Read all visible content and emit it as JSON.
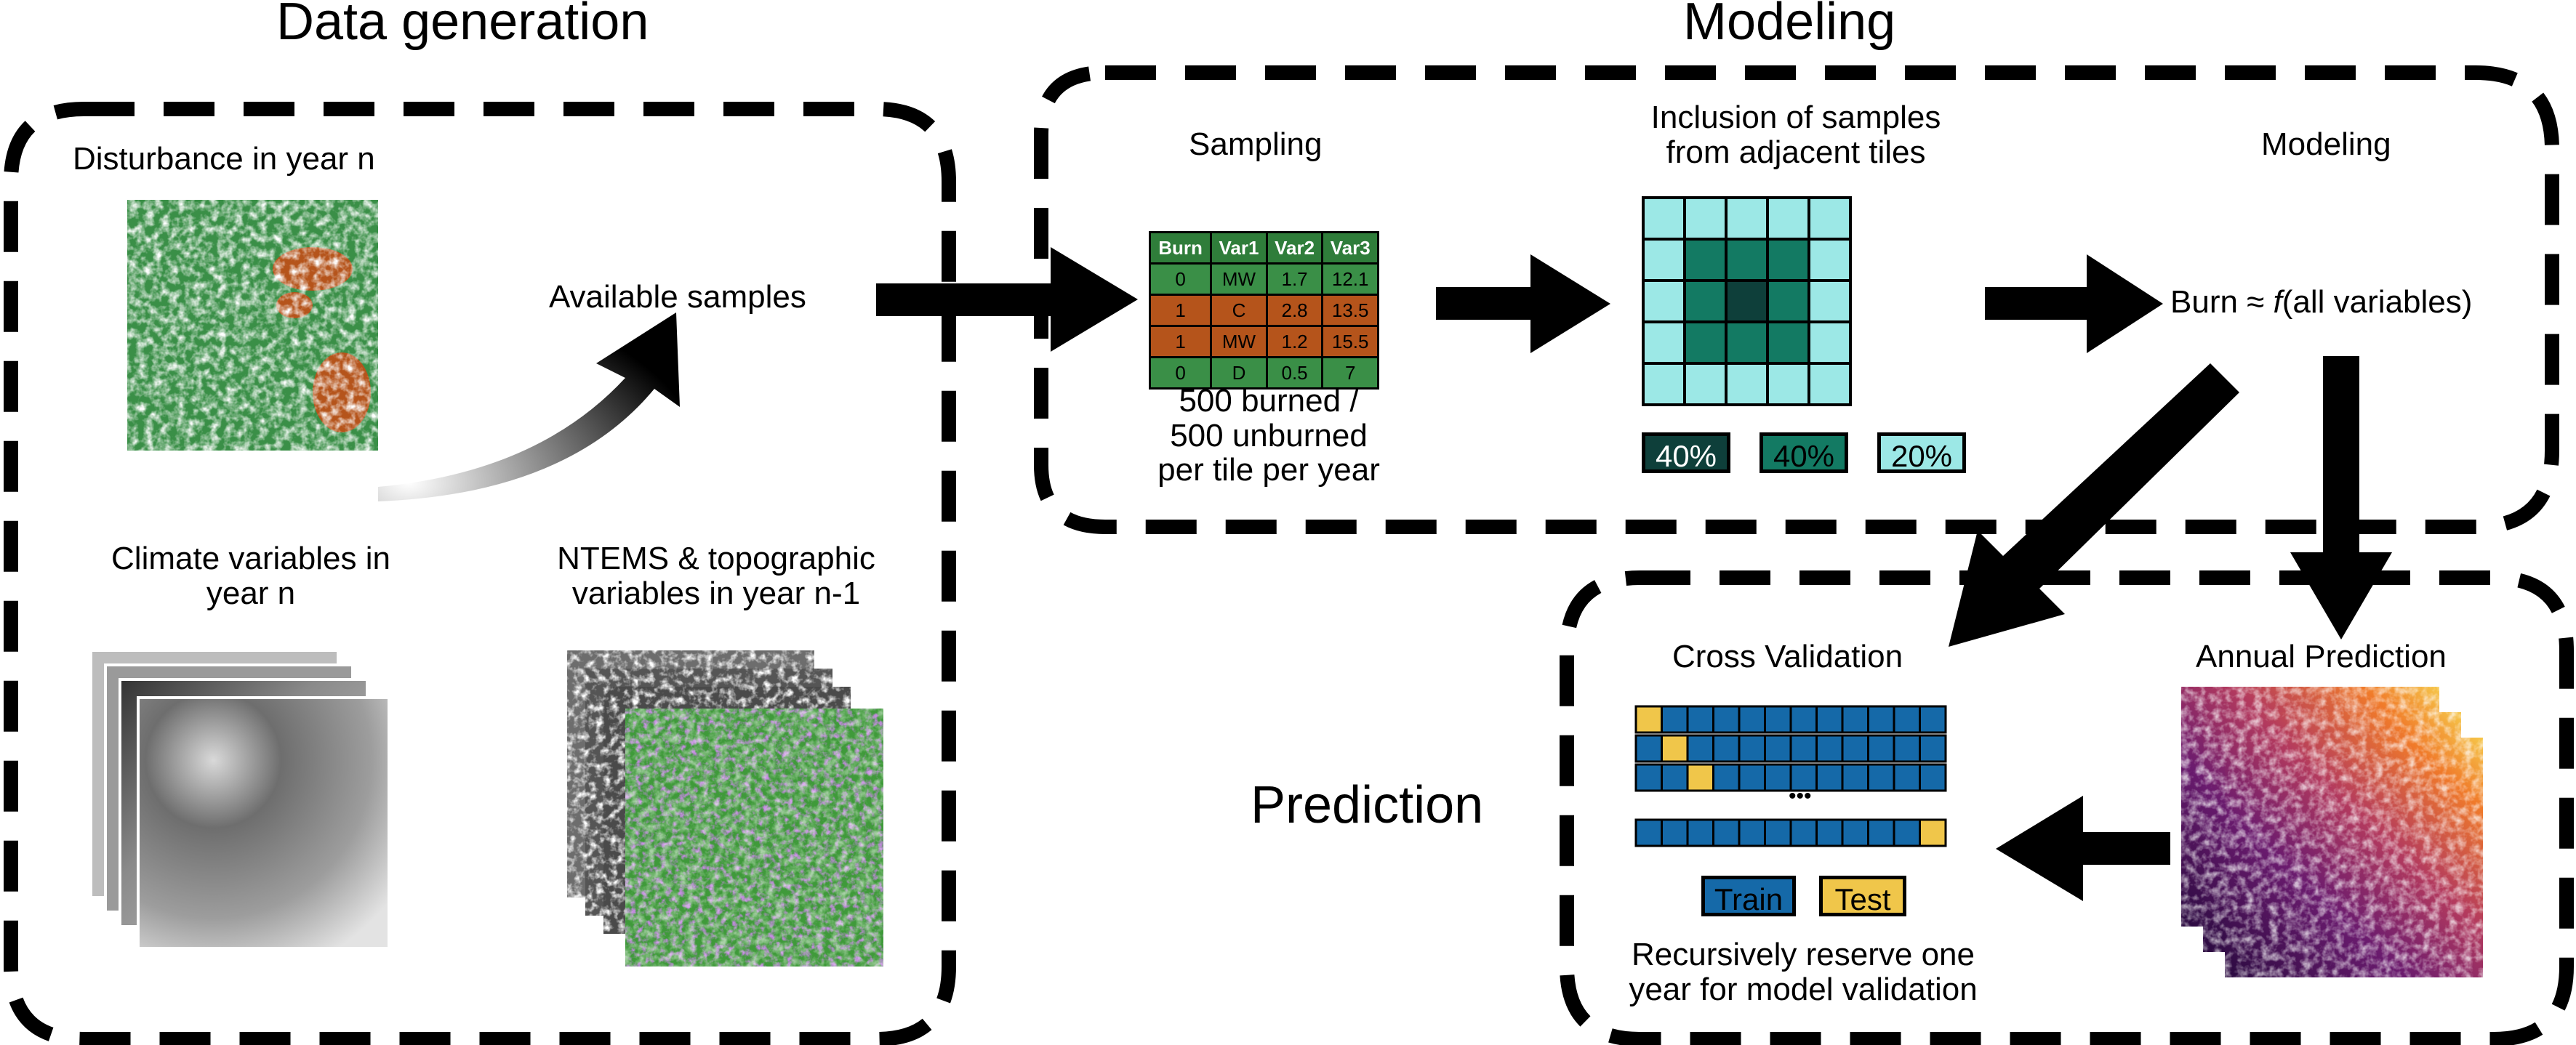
{
  "sections": {
    "data_generation": "Data generation",
    "modeling": "Modeling",
    "prediction": "Prediction"
  },
  "data_generation": {
    "disturbance_label": "Disturbance in year n",
    "available_samples": "Available samples",
    "climate_label": [
      "Climate variables in",
      "year n"
    ],
    "ntems_label": [
      "NTEMS & topographic",
      "variables in year n-1"
    ]
  },
  "modeling": {
    "sampling_title": "Sampling",
    "table": {
      "headers": [
        "Burn",
        "Var1",
        "Var2",
        "Var3"
      ],
      "rows": [
        {
          "cells": [
            "0",
            "MW",
            "1.7",
            "12.1"
          ],
          "class": "unburned"
        },
        {
          "cells": [
            "1",
            "C",
            "2.8",
            "13.5"
          ],
          "class": "burned"
        },
        {
          "cells": [
            "1",
            "MW",
            "1.2",
            "15.5"
          ],
          "class": "burned"
        },
        {
          "cells": [
            "0",
            "D",
            "0.5",
            "7"
          ],
          "class": "unburned"
        }
      ]
    },
    "sampling_caption": [
      "500 burned /",
      "500 unburned",
      "per tile per year"
    ],
    "inclusion_title": [
      "Inclusion of samples",
      "from adjacent tiles"
    ],
    "legend": [
      "40%",
      "40%",
      "20%"
    ],
    "modeling_title": "Modeling",
    "formula_prefix": "Burn ≈ ",
    "formula_f": "f",
    "formula_suffix": "(all variables)"
  },
  "prediction": {
    "cv_title": "Cross Validation",
    "ellipsis": "•••",
    "legend_train": "Train",
    "legend_test": "Test",
    "cv_caption": [
      "Recursively reserve one",
      "year for model validation"
    ],
    "annual_title": "Annual Prediction"
  },
  "colors": {
    "green": "#3a8f47",
    "burn": "#b5541b",
    "teal_dark": "#0e3f3a",
    "teal_mid": "#137a63",
    "teal_light": "#9ce8e6",
    "train": "#1569a8",
    "test": "#f0c64a"
  }
}
